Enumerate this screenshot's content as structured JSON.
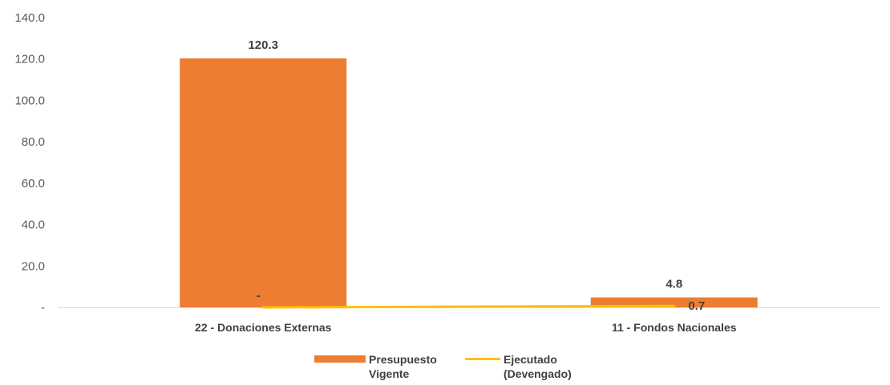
{
  "chart_data": {
    "type": "bar",
    "title": "",
    "xlabel": "",
    "ylabel": "",
    "categories": [
      "22 - Donaciones Externas",
      "11 - Fondos Nacionales"
    ],
    "ylim": [
      0,
      140
    ],
    "yticks": [
      0,
      20,
      40,
      60,
      80,
      100,
      120,
      140
    ],
    "ytick_labels": [
      "-",
      "20.0",
      "40.0",
      "60.0",
      "80.0",
      "100.0",
      "120.0",
      "140.0"
    ],
    "grid": false,
    "legend_position": "bottom",
    "series": [
      {
        "name": "Presupuesto Vigente",
        "legend_lines": [
          "Presupuesto",
          "Vigente"
        ],
        "kind": "bar",
        "color": "#ED7D31",
        "values": [
          120.3,
          4.8
        ],
        "labels": [
          "120.3",
          "4.8"
        ]
      },
      {
        "name": "Ejecutado (Devengado)",
        "legend_lines": [
          "Ejecutado",
          "(Devengado)"
        ],
        "kind": "line",
        "color": "#FFC000",
        "values": [
          0,
          0.7
        ],
        "labels": [
          "-",
          "0.7"
        ]
      }
    ]
  }
}
